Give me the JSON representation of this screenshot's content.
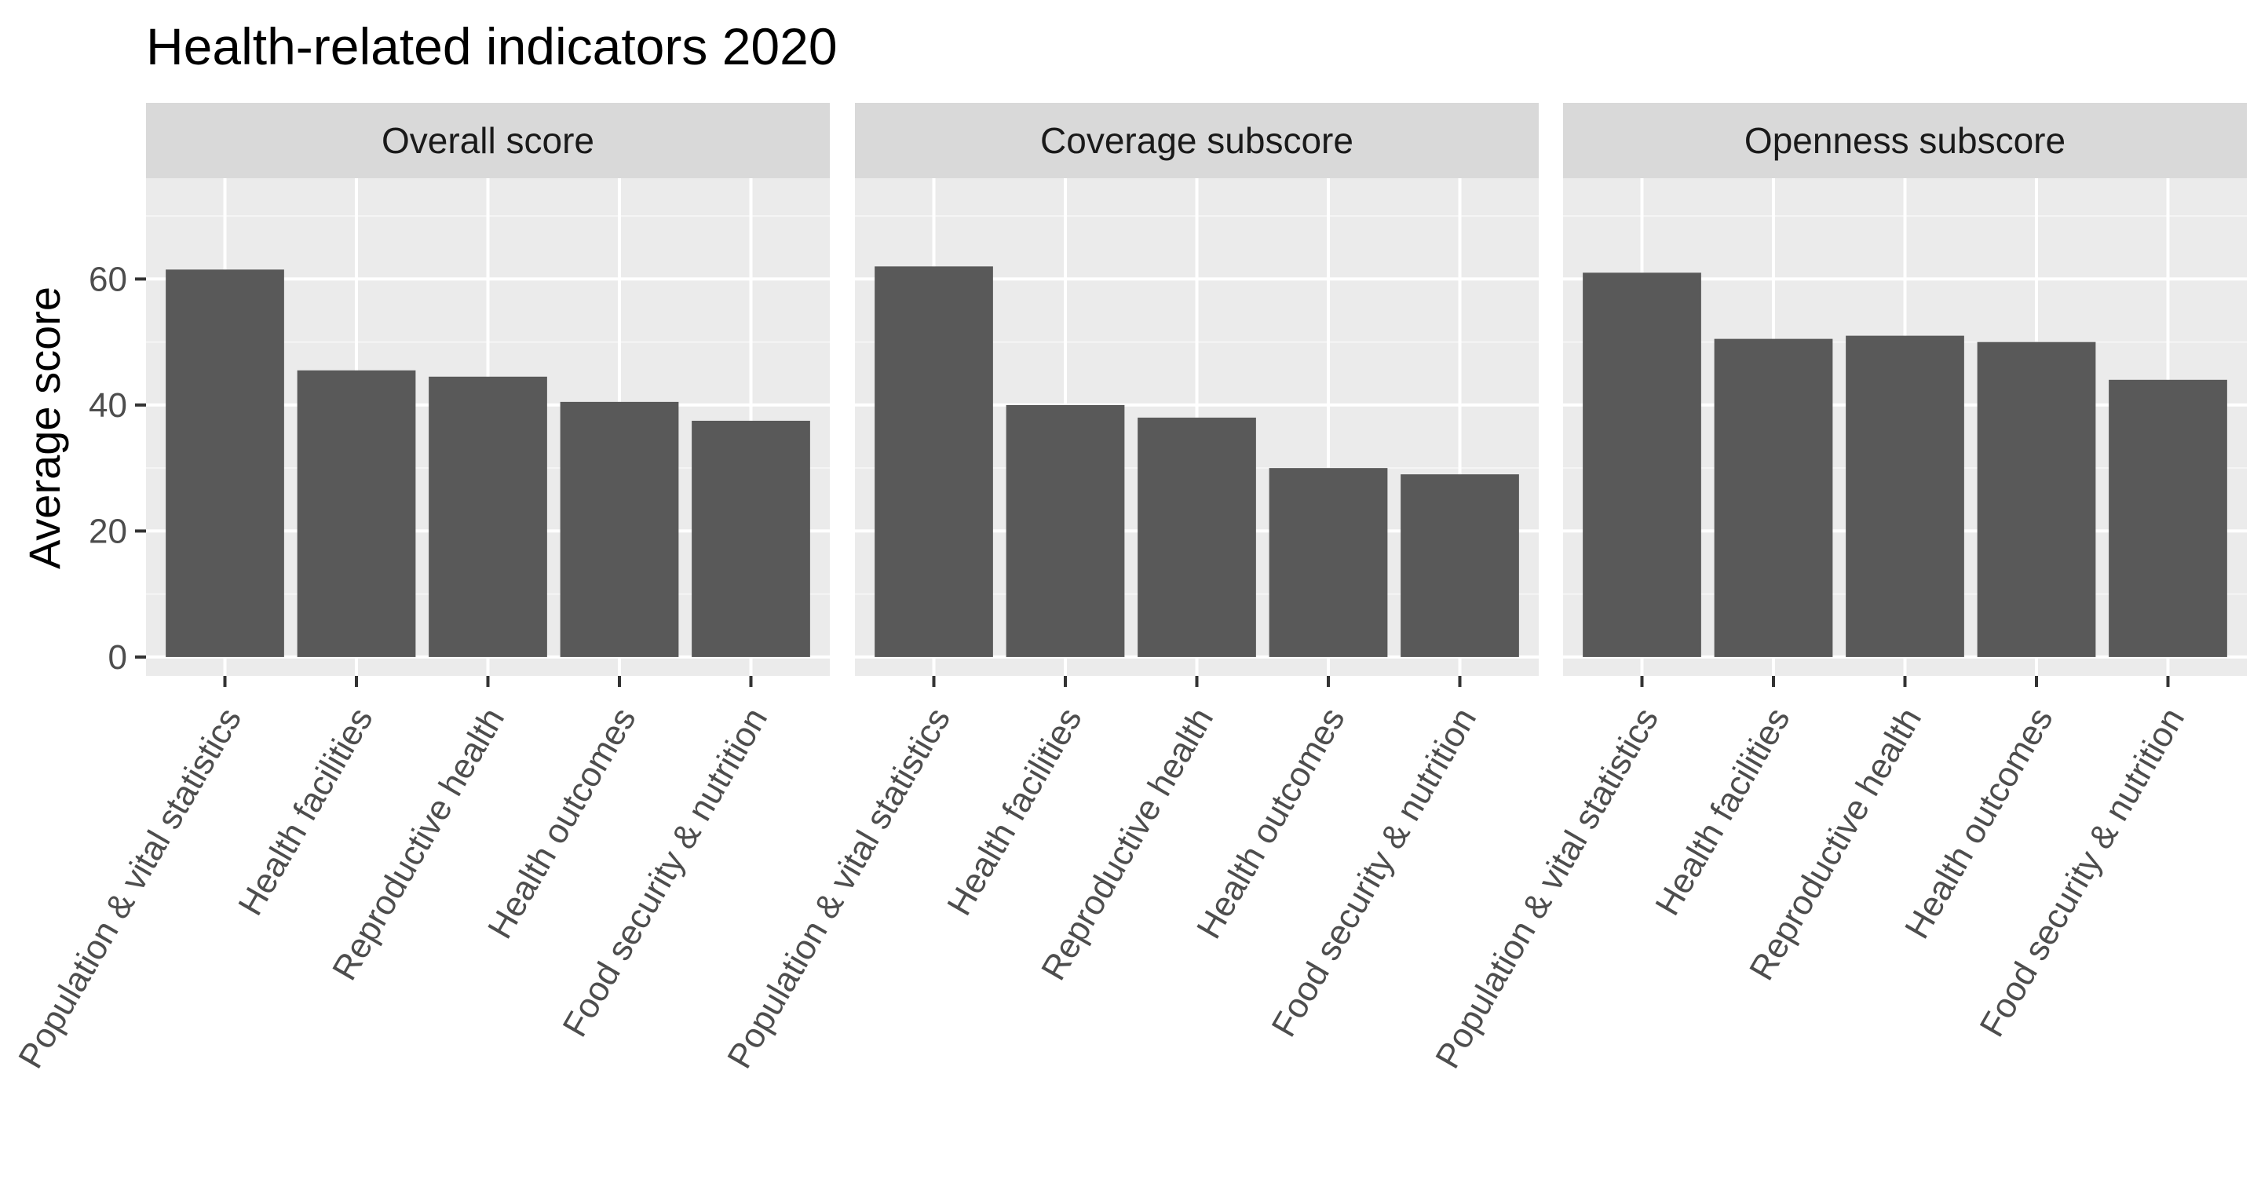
{
  "chart_data": {
    "type": "bar",
    "title": "Health-related indicators 2020",
    "xlabel": "",
    "ylabel": "Average score",
    "ylim": [
      -3,
      76
    ],
    "yticks": [
      0,
      20,
      40,
      60
    ],
    "grid": true,
    "categories": [
      "Population & vital statistics",
      "Health facilities",
      "Reproductive health",
      "Health outcomes",
      "Food security & nutrition"
    ],
    "series": [
      {
        "name": "Overall score",
        "values": [
          61.5,
          45.5,
          44.5,
          40.5,
          37.5
        ]
      },
      {
        "name": "Coverage subscore",
        "values": [
          62,
          40,
          38,
          30,
          29
        ]
      },
      {
        "name": "Openness subscore",
        "values": [
          61,
          50.5,
          51,
          50,
          44
        ]
      }
    ],
    "colors": {
      "bar": "#595959",
      "panel_background": "#ebebeb",
      "strip_background": "#d9d9d9",
      "grid_major": "#ffffff",
      "grid_minor": "#f5f5f5",
      "tick_text": "#4d4d4d",
      "strip_text": "#1a1a1a"
    }
  }
}
